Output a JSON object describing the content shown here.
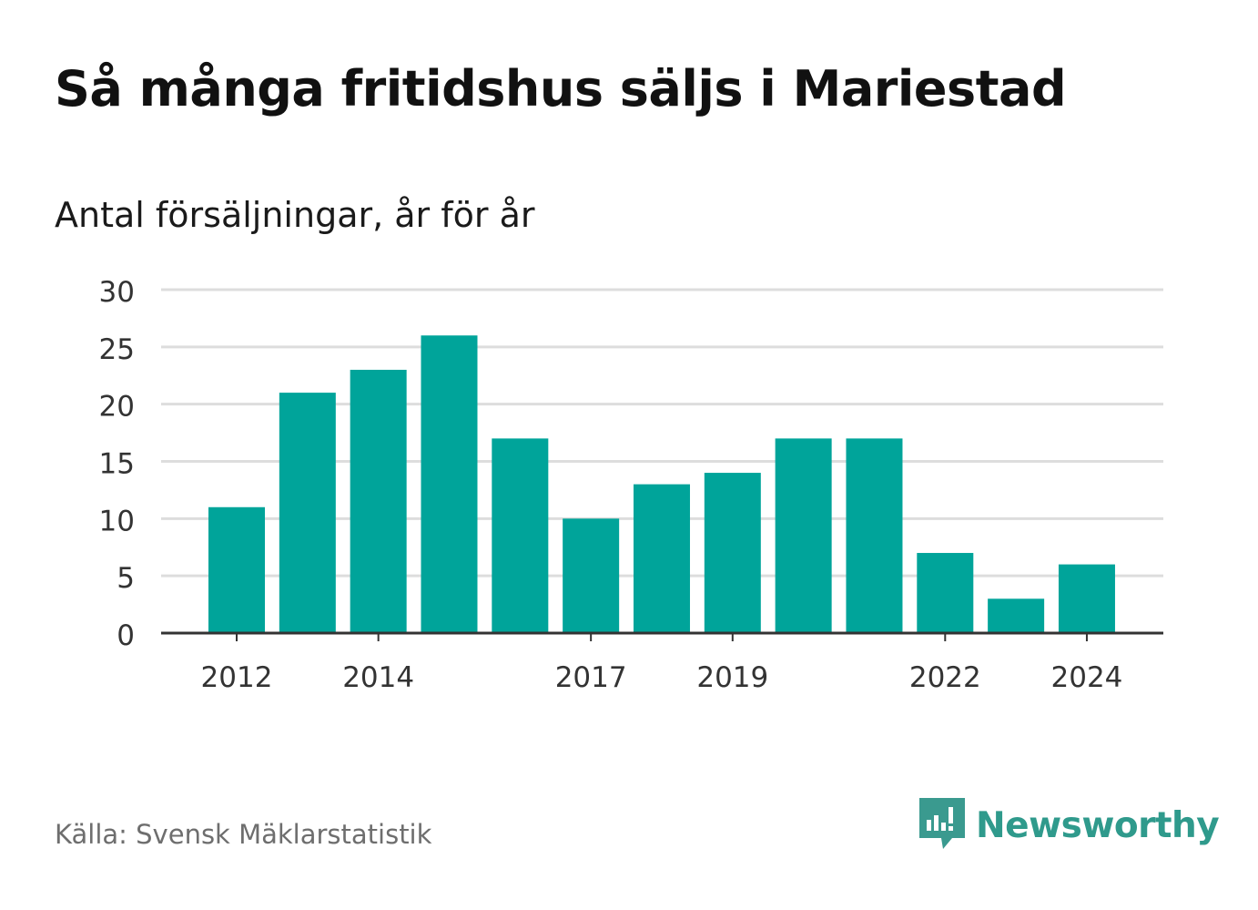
{
  "title": "Så många fritidshus säljs i Mariestad",
  "subtitle": "Antal försäljningar, år för år",
  "source": "Källa: Svensk Mäklarstatistik",
  "brand": {
    "name": "Newsworthy",
    "icon": "newsworthy-logo-icon",
    "color": "#3a9a8f"
  },
  "colors": {
    "bar": "#00a49a",
    "grid": "#dddddd",
    "axis": "#333333"
  },
  "chart_data": {
    "type": "bar",
    "categories": [
      "2012",
      "2013",
      "2014",
      "2015",
      "2016",
      "2017",
      "2018",
      "2019",
      "2020",
      "2021",
      "2022",
      "2023",
      "2024"
    ],
    "values": [
      11,
      21,
      23,
      26,
      17,
      10,
      13,
      14,
      17,
      17,
      7,
      3,
      6
    ],
    "x_tick_labels": [
      "2012",
      "2014",
      "2017",
      "2019",
      "2022",
      "2024"
    ],
    "y_ticks": [
      0,
      5,
      10,
      15,
      20,
      25,
      30
    ],
    "ylim": [
      0,
      30
    ],
    "grid": true,
    "legend": false
  }
}
